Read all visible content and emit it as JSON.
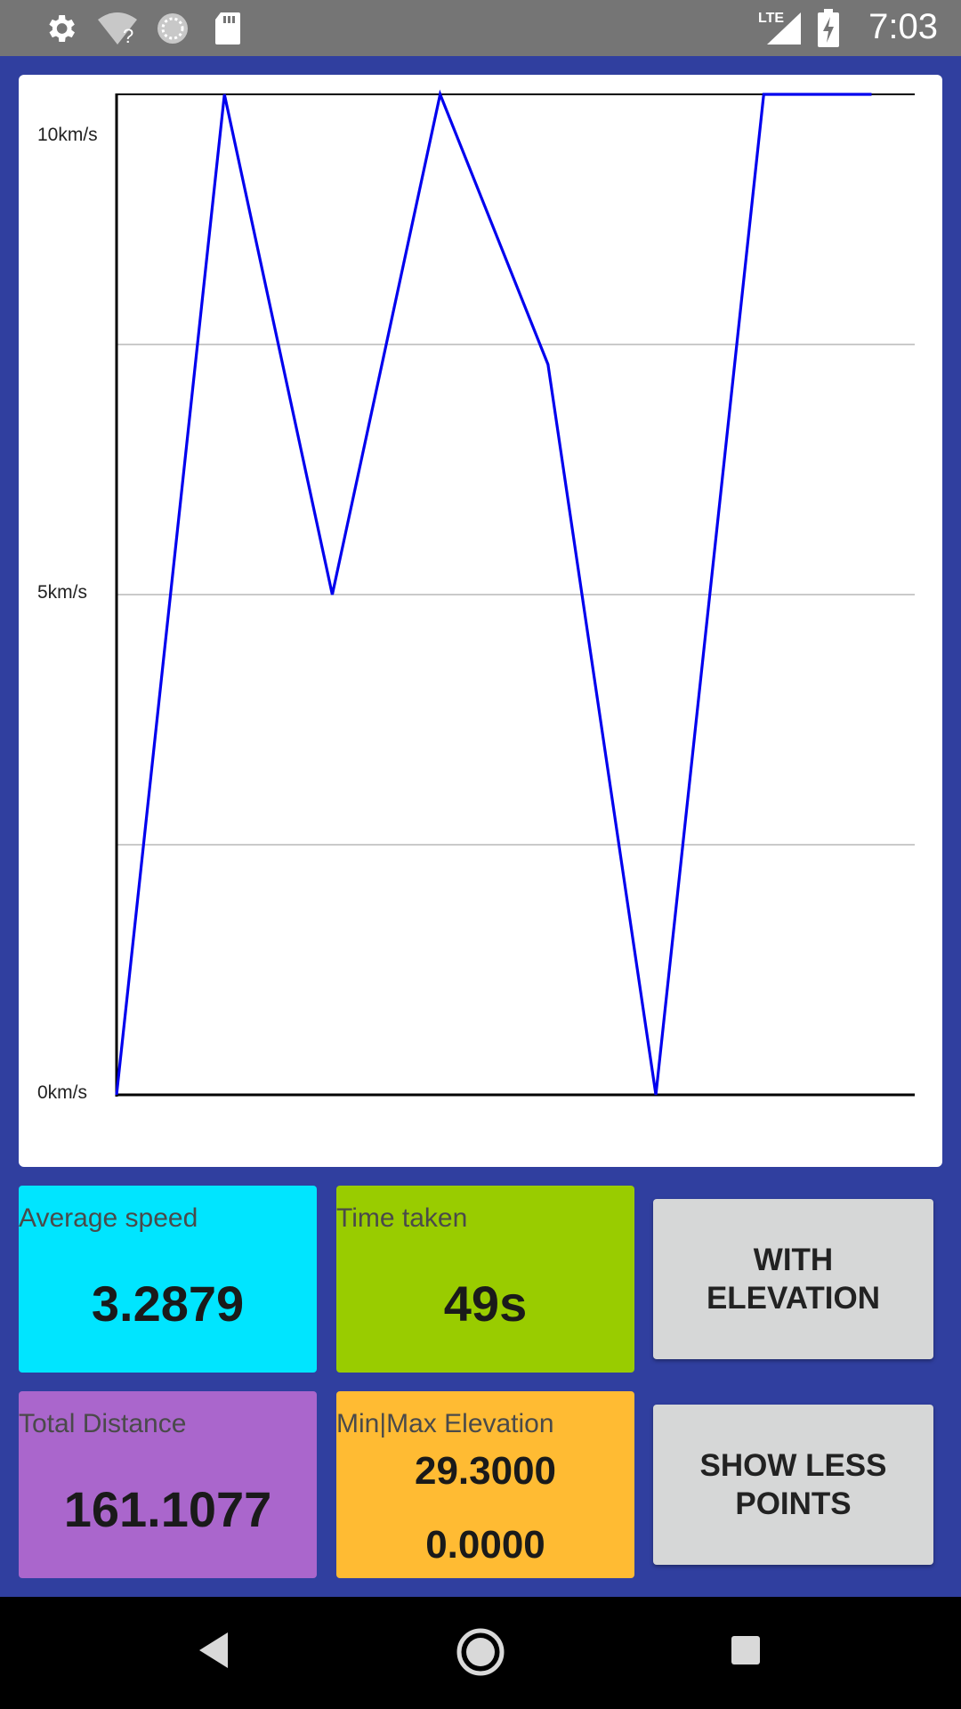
{
  "status_bar": {
    "time": "7:03",
    "network_label": "LTE",
    "icons": [
      "gear-icon",
      "wifi-unknown-icon",
      "sync-icon",
      "sd-card-icon",
      "cell-signal-icon",
      "battery-charging-icon"
    ]
  },
  "chart_data": {
    "type": "line",
    "title": "",
    "xlabel": "",
    "ylabel": "",
    "ylim": [
      0,
      10
    ],
    "y_tick_labels": [
      "10km/s",
      "5km/s",
      "0km/s"
    ],
    "y_ticks": [
      10,
      5,
      0
    ],
    "grid": true,
    "series": [
      {
        "x": [
          0,
          1,
          2,
          3,
          4,
          5,
          6,
          7
        ],
        "values": [
          0,
          10,
          5,
          10,
          7.3,
          0,
          10,
          10
        ]
      }
    ],
    "xlim": [
      0,
      7.4
    ],
    "line_color": "#0000ee"
  },
  "stats": {
    "average_speed": {
      "label": "Average speed",
      "value": "3.2879",
      "color": "#00e5ff"
    },
    "time_taken": {
      "label": "Time taken",
      "value": "49s",
      "color": "#99cc00"
    },
    "total_distance": {
      "label": "Total Distance",
      "value": "161.1077",
      "color": "#aa66cc"
    },
    "elevation": {
      "label": "Min|Max Elevation",
      "max": "29.3000",
      "min": "0.0000",
      "color": "#ffbb33"
    }
  },
  "buttons": {
    "with_elevation": "WITH\nELEVATION",
    "show_less_points": "SHOW LESS\nPOINTS"
  },
  "colors": {
    "background": "#303f9f",
    "status_bar": "#757575",
    "button": "#d6d7d7"
  }
}
